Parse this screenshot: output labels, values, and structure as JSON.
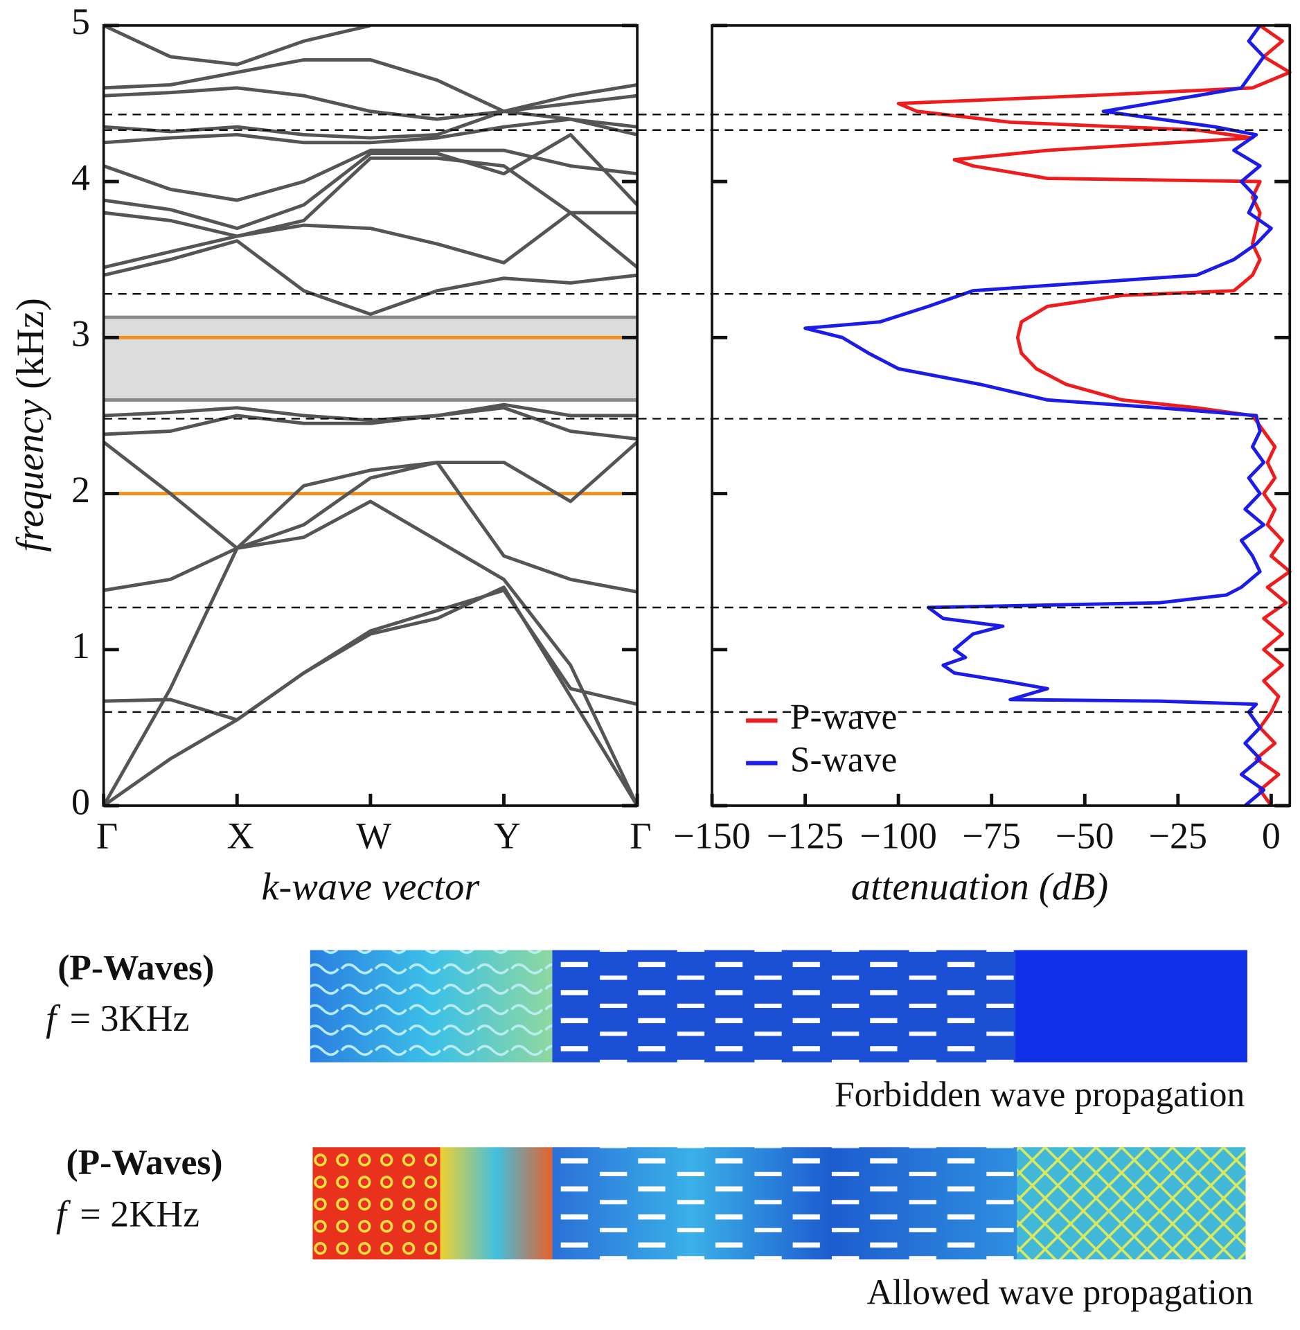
{
  "chart_data": [
    {
      "type": "line",
      "ylabel": "frequency",
      "yunit": "(kHz)",
      "xlabel": "k-wave vector",
      "x": [
        0,
        0.5,
        1,
        1.5,
        2,
        2.5,
        3,
        3.5,
        4
      ],
      "xlim": [
        0,
        4
      ],
      "xticks": [
        {
          "value": 0,
          "label": "Γ"
        },
        {
          "value": 1,
          "label": "X"
        },
        {
          "value": 2,
          "label": "W"
        },
        {
          "value": 3,
          "label": "Y"
        },
        {
          "value": 4,
          "label": "Γ"
        }
      ],
      "ylim": [
        0,
        5
      ],
      "yticks": [
        0,
        1,
        2,
        3,
        4,
        5
      ],
      "band_gap": [
        2.6,
        3.13
      ],
      "band_gap_color": "#dcdcdc",
      "highlight_lines": [
        {
          "value": 3,
          "color": "#f39019"
        },
        {
          "value": 2,
          "color": "#f39019"
        }
      ],
      "reference_lines": [
        0.6,
        1.27,
        2.48,
        3.28,
        4.33,
        4.43
      ],
      "series": [
        {
          "color": "#555555",
          "values": [
            0,
            0.3,
            0.55,
            0.85,
            1.1,
            1.2,
            1.4,
            0.7,
            0
          ]
        },
        {
          "color": "#555555",
          "values": [
            0,
            0.75,
            1.65,
            1.72,
            1.95,
            1.7,
            1.45,
            0.9,
            0
          ]
        },
        {
          "color": "#555555",
          "values": [
            0.67,
            0.68,
            0.55,
            0.85,
            1.12,
            1.25,
            1.38,
            0.75,
            0.65
          ]
        },
        {
          "color": "#555555",
          "values": [
            1.38,
            1.45,
            1.65,
            1.8,
            2.1,
            2.2,
            1.6,
            1.45,
            1.37
          ]
        },
        {
          "color": "#555555",
          "values": [
            2.33,
            2.0,
            1.65,
            2.05,
            2.15,
            2.2,
            2.2,
            1.95,
            2.33
          ]
        },
        {
          "color": "#555555",
          "values": [
            2.38,
            2.4,
            2.5,
            2.45,
            2.45,
            2.5,
            2.55,
            2.4,
            2.35
          ]
        },
        {
          "color": "#555555",
          "values": [
            2.5,
            2.52,
            2.55,
            2.5,
            2.47,
            2.5,
            2.57,
            2.5,
            2.5
          ]
        },
        {
          "color": "#555555",
          "values": [
            3.4,
            3.5,
            3.62,
            3.3,
            3.15,
            3.3,
            3.38,
            3.35,
            3.4
          ]
        },
        {
          "color": "#555555",
          "values": [
            3.45,
            3.55,
            3.65,
            3.72,
            3.7,
            3.6,
            3.48,
            3.8,
            3.45
          ]
        },
        {
          "color": "#555555",
          "values": [
            3.8,
            3.75,
            3.65,
            3.75,
            4.15,
            4.15,
            4.1,
            3.8,
            3.8
          ]
        },
        {
          "color": "#555555",
          "values": [
            3.88,
            3.82,
            3.7,
            3.85,
            4.18,
            4.18,
            4.05,
            4.3,
            3.85
          ]
        },
        {
          "color": "#555555",
          "values": [
            4.1,
            3.95,
            3.88,
            4.0,
            4.2,
            4.2,
            4.2,
            4.1,
            4.05
          ]
        },
        {
          "color": "#555555",
          "values": [
            4.25,
            4.28,
            4.3,
            4.25,
            4.25,
            4.28,
            4.35,
            4.4,
            4.3
          ]
        },
        {
          "color": "#555555",
          "values": [
            4.35,
            4.32,
            4.35,
            4.3,
            4.28,
            4.3,
            4.45,
            4.4,
            4.35
          ]
        },
        {
          "color": "#555555",
          "values": [
            4.55,
            4.57,
            4.6,
            4.55,
            4.45,
            4.4,
            4.45,
            4.5,
            4.55
          ]
        },
        {
          "color": "#555555",
          "values": [
            4.6,
            4.62,
            4.7,
            4.78,
            4.78,
            4.65,
            4.45,
            4.55,
            4.62
          ]
        },
        {
          "color": "#555555",
          "values": [
            5.0,
            4.8,
            4.75,
            4.9,
            5.0,
            null,
            null,
            null,
            null
          ]
        }
      ]
    },
    {
      "type": "line",
      "orientation": "horizontal",
      "xlabel": "attenuation (dB)",
      "xlim": [
        -150,
        5
      ],
      "xticks": [
        {
          "value": -150,
          "label": "−150"
        },
        {
          "value": -125,
          "label": "−125"
        },
        {
          "value": -100,
          "label": "−100"
        },
        {
          "value": -75,
          "label": "−75"
        },
        {
          "value": -50,
          "label": "−50"
        },
        {
          "value": -25,
          "label": "−25"
        },
        0
      ],
      "ylim": [
        0,
        5
      ],
      "yticks": [
        0,
        1,
        2,
        3,
        4,
        5
      ],
      "legend": "lower left",
      "series": [
        {
          "name": "P-wave",
          "color": "#ee1c1c",
          "y": [
            0,
            0.1,
            0.2,
            0.3,
            0.4,
            0.5,
            0.6,
            0.7,
            0.8,
            0.9,
            1.0,
            1.1,
            1.2,
            1.3,
            1.4,
            1.5,
            1.6,
            1.7,
            1.8,
            1.9,
            2.0,
            2.1,
            2.2,
            2.3,
            2.4,
            2.5,
            2.55,
            2.6,
            2.7,
            2.8,
            2.9,
            3.0,
            3.1,
            3.2,
            3.27,
            3.3,
            3.4,
            3.5,
            3.6,
            3.7,
            3.8,
            3.9,
            4.0,
            4.02,
            4.1,
            4.14,
            4.2,
            4.28,
            4.33,
            4.38,
            4.45,
            4.5,
            4.55,
            4.6,
            4.7,
            4.8,
            4.9,
            5.0
          ],
          "values": [
            0,
            -3,
            2,
            -4,
            1,
            -3,
            0,
            2,
            -2,
            3,
            -2,
            3,
            -2,
            4,
            -1,
            5,
            0,
            3,
            -1,
            1,
            -2,
            1,
            -1,
            1,
            -2,
            -5,
            -20,
            -40,
            -55,
            -63,
            -67,
            -68,
            -67,
            -60,
            -40,
            -10,
            -5,
            -3,
            -5,
            -4,
            -3,
            -5,
            -3,
            -60,
            -80,
            -85,
            -60,
            -5,
            -20,
            -70,
            -95,
            -100,
            -50,
            -5,
            5,
            -2,
            3,
            -3
          ]
        },
        {
          "name": "S-wave",
          "color": "#1c1ce8",
          "y": [
            0,
            0.1,
            0.2,
            0.3,
            0.4,
            0.5,
            0.6,
            0.65,
            0.67,
            0.68,
            0.75,
            0.8,
            0.85,
            0.9,
            0.95,
            1.0,
            1.1,
            1.15,
            1.2,
            1.27,
            1.3,
            1.35,
            1.4,
            1.5,
            1.6,
            1.7,
            1.8,
            1.9,
            2.0,
            2.1,
            2.2,
            2.3,
            2.4,
            2.5,
            2.55,
            2.6,
            2.7,
            2.8,
            2.9,
            3.0,
            3.06,
            3.1,
            3.2,
            3.3,
            3.35,
            3.4,
            3.5,
            3.6,
            3.7,
            3.8,
            3.9,
            4.0,
            4.1,
            4.2,
            4.3,
            4.35,
            4.45,
            4.55,
            4.6,
            4.7,
            4.8,
            4.9,
            5.0
          ],
          "values": [
            -7,
            -2,
            -8,
            -3,
            -7,
            -3,
            -6,
            -4,
            -30,
            -70,
            -60,
            -72,
            -85,
            -88,
            -82,
            -85,
            -80,
            -72,
            -88,
            -92,
            -30,
            -12,
            -8,
            -3,
            -5,
            -8,
            -2,
            -7,
            -3,
            -6,
            -2,
            -5,
            -3,
            -4,
            -30,
            -60,
            -78,
            -100,
            -108,
            -115,
            -125,
            -105,
            -92,
            -80,
            -50,
            -20,
            -10,
            -4,
            0,
            -6,
            -4,
            -8,
            -3,
            -10,
            -4,
            -15,
            -45,
            -20,
            -8,
            -5,
            -2,
            -6,
            -3
          ]
        }
      ]
    }
  ],
  "panels": [
    {
      "label": "(P-Waves)",
      "symbol": "f",
      "frequency": "= 3KHz",
      "caption": "Forbidden wave propagation"
    },
    {
      "label": "(P-Waves)",
      "symbol": "f",
      "frequency": "= 2KHz",
      "caption": "Allowed wave propagation"
    }
  ]
}
